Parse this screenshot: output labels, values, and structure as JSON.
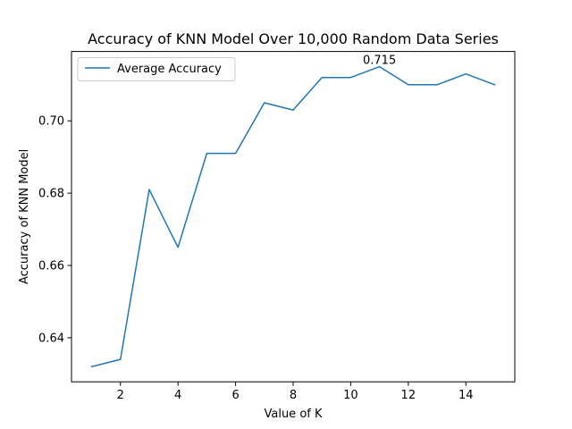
{
  "chart_data": {
    "type": "line",
    "title": "Accuracy of KNN Model Over 10,000 Random Data Series",
    "xlabel": "Value of K",
    "ylabel": "Accuracy of KNN Model",
    "xlim": [
      0.3,
      15.7
    ],
    "ylim": [
      0.6278,
      0.7192
    ],
    "xticks": [
      2,
      4,
      6,
      8,
      10,
      12,
      14
    ],
    "yticks": [
      0.64,
      0.66,
      0.68,
      0.7
    ],
    "grid": false,
    "legend_position": "top-left",
    "series": [
      {
        "name": "Average Accuracy",
        "color": "#1f77b4",
        "x": [
          1,
          2,
          3,
          4,
          5,
          6,
          7,
          8,
          9,
          10,
          11,
          12,
          13,
          14,
          15
        ],
        "y": [
          0.632,
          0.634,
          0.681,
          0.665,
          0.691,
          0.691,
          0.705,
          0.703,
          0.712,
          0.712,
          0.715,
          0.71,
          0.71,
          0.713,
          0.71
        ]
      }
    ],
    "annotations": [
      {
        "text": "0.715",
        "x": 11,
        "y": 0.715
      }
    ]
  }
}
